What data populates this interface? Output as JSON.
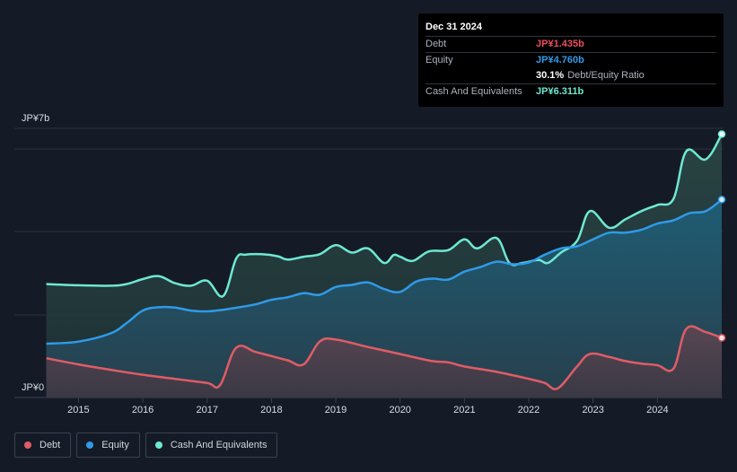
{
  "tooltip": {
    "date": "Dec 31 2024",
    "rows": [
      {
        "label": "Debt",
        "value": "JP¥1.435b",
        "color": "#e8505b"
      },
      {
        "label": "Equity",
        "value": "JP¥4.760b",
        "color": "#2f9ae8"
      },
      {
        "label": "",
        "value": "30.1%",
        "suffix": "Debt/Equity Ratio",
        "color": "#ffffff"
      },
      {
        "label": "Cash And Equivalents",
        "value": "JP¥6.311b",
        "color": "#6ee8d2"
      }
    ]
  },
  "legend": [
    {
      "label": "Debt",
      "color": "#e05c66"
    },
    {
      "label": "Equity",
      "color": "#2f9ae8"
    },
    {
      "label": "Cash And Equivalents",
      "color": "#6ee8d2"
    }
  ],
  "chart_data": {
    "type": "area",
    "y_top_label": "JP¥7b",
    "y_bottom_label": "JP¥0",
    "ylim": [
      0,
      6.5
    ],
    "xlim": [
      2014.45,
      2025.0
    ],
    "x_ticks": [
      "2015",
      "2016",
      "2017",
      "2018",
      "2019",
      "2020",
      "2021",
      "2022",
      "2023",
      "2024"
    ],
    "series": [
      {
        "name": "Cash And Equivalents",
        "color": "#6ee8d2",
        "points": [
          [
            2014.5,
            2.74
          ],
          [
            2015.0,
            2.71
          ],
          [
            2015.5,
            2.7
          ],
          [
            2015.75,
            2.74
          ],
          [
            2016.0,
            2.86
          ],
          [
            2016.25,
            2.93
          ],
          [
            2016.5,
            2.76
          ],
          [
            2016.75,
            2.7
          ],
          [
            2017.0,
            2.82
          ],
          [
            2017.25,
            2.45
          ],
          [
            2017.45,
            3.35
          ],
          [
            2017.6,
            3.45
          ],
          [
            2017.85,
            3.46
          ],
          [
            2018.1,
            3.41
          ],
          [
            2018.25,
            3.33
          ],
          [
            2018.5,
            3.4
          ],
          [
            2018.75,
            3.46
          ],
          [
            2019.0,
            3.68
          ],
          [
            2019.25,
            3.5
          ],
          [
            2019.5,
            3.6
          ],
          [
            2019.75,
            3.25
          ],
          [
            2019.9,
            3.44
          ],
          [
            2020.0,
            3.4
          ],
          [
            2020.2,
            3.3
          ],
          [
            2020.45,
            3.53
          ],
          [
            2020.75,
            3.56
          ],
          [
            2021.0,
            3.82
          ],
          [
            2021.2,
            3.6
          ],
          [
            2021.5,
            3.85
          ],
          [
            2021.7,
            3.25
          ],
          [
            2021.9,
            3.25
          ],
          [
            2022.15,
            3.32
          ],
          [
            2022.3,
            3.25
          ],
          [
            2022.5,
            3.5
          ],
          [
            2022.75,
            3.78
          ],
          [
            2022.95,
            4.5
          ],
          [
            2023.25,
            4.1
          ],
          [
            2023.5,
            4.3
          ],
          [
            2023.75,
            4.5
          ],
          [
            2024.0,
            4.65
          ],
          [
            2024.25,
            4.8
          ],
          [
            2024.45,
            5.95
          ],
          [
            2024.75,
            5.75
          ],
          [
            2025.0,
            6.36
          ]
        ]
      },
      {
        "name": "Equity",
        "color": "#2f9ae8",
        "points": [
          [
            2014.5,
            1.3
          ],
          [
            2015.0,
            1.35
          ],
          [
            2015.5,
            1.55
          ],
          [
            2015.75,
            1.8
          ],
          [
            2016.0,
            2.1
          ],
          [
            2016.25,
            2.18
          ],
          [
            2016.5,
            2.17
          ],
          [
            2016.75,
            2.1
          ],
          [
            2017.0,
            2.08
          ],
          [
            2017.25,
            2.12
          ],
          [
            2017.5,
            2.18
          ],
          [
            2017.75,
            2.25
          ],
          [
            2018.0,
            2.36
          ],
          [
            2018.25,
            2.42
          ],
          [
            2018.5,
            2.52
          ],
          [
            2018.75,
            2.48
          ],
          [
            2019.0,
            2.67
          ],
          [
            2019.25,
            2.72
          ],
          [
            2019.5,
            2.78
          ],
          [
            2019.75,
            2.62
          ],
          [
            2020.0,
            2.55
          ],
          [
            2020.25,
            2.8
          ],
          [
            2020.5,
            2.87
          ],
          [
            2020.75,
            2.85
          ],
          [
            2021.0,
            3.04
          ],
          [
            2021.25,
            3.15
          ],
          [
            2021.5,
            3.28
          ],
          [
            2021.75,
            3.22
          ],
          [
            2022.0,
            3.26
          ],
          [
            2022.25,
            3.45
          ],
          [
            2022.5,
            3.6
          ],
          [
            2022.75,
            3.65
          ],
          [
            2023.0,
            3.82
          ],
          [
            2023.25,
            3.98
          ],
          [
            2023.5,
            3.98
          ],
          [
            2023.75,
            4.05
          ],
          [
            2024.0,
            4.2
          ],
          [
            2024.25,
            4.28
          ],
          [
            2024.5,
            4.45
          ],
          [
            2024.75,
            4.5
          ],
          [
            2025.0,
            4.78
          ]
        ]
      },
      {
        "name": "Debt",
        "color": "#e05c66",
        "points": [
          [
            2014.5,
            0.95
          ],
          [
            2015.0,
            0.8
          ],
          [
            2015.5,
            0.67
          ],
          [
            2016.0,
            0.55
          ],
          [
            2016.5,
            0.45
          ],
          [
            2017.0,
            0.35
          ],
          [
            2017.2,
            0.3
          ],
          [
            2017.45,
            1.2
          ],
          [
            2017.75,
            1.1
          ],
          [
            2018.0,
            1.0
          ],
          [
            2018.25,
            0.9
          ],
          [
            2018.5,
            0.8
          ],
          [
            2018.75,
            1.35
          ],
          [
            2019.0,
            1.4
          ],
          [
            2019.5,
            1.22
          ],
          [
            2020.0,
            1.05
          ],
          [
            2020.5,
            0.88
          ],
          [
            2020.75,
            0.85
          ],
          [
            2021.0,
            0.75
          ],
          [
            2021.5,
            0.62
          ],
          [
            2022.0,
            0.45
          ],
          [
            2022.25,
            0.35
          ],
          [
            2022.45,
            0.22
          ],
          [
            2022.75,
            0.75
          ],
          [
            2022.95,
            1.05
          ],
          [
            2023.25,
            0.98
          ],
          [
            2023.5,
            0.88
          ],
          [
            2023.75,
            0.82
          ],
          [
            2024.0,
            0.78
          ],
          [
            2024.25,
            0.7
          ],
          [
            2024.45,
            1.66
          ],
          [
            2024.75,
            1.58
          ],
          [
            2025.0,
            1.44
          ]
        ]
      }
    ]
  }
}
